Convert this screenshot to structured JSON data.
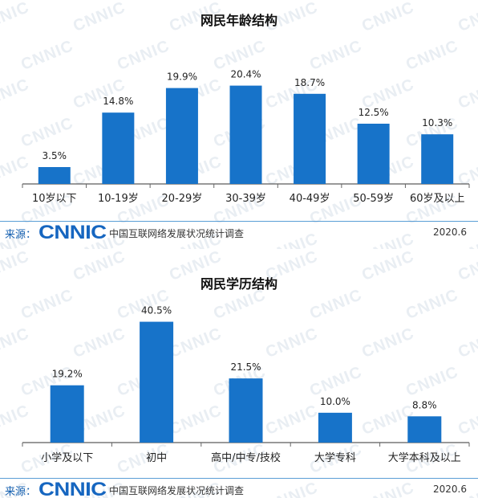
{
  "chart_data": [
    {
      "type": "bar",
      "title": "网民年龄结构",
      "categories": [
        "10岁以下",
        "10-19岁",
        "20-29岁",
        "30-39岁",
        "40-49岁",
        "50-59岁",
        "60岁及以上"
      ],
      "values": [
        3.5,
        14.8,
        19.9,
        20.4,
        18.7,
        12.5,
        10.3
      ],
      "value_labels": [
        "3.5%",
        "14.8%",
        "19.9%",
        "20.4%",
        "18.7%",
        "12.5%",
        "10.3%"
      ],
      "xlabel": "",
      "ylabel": "",
      "ylim": [
        0,
        21.5
      ],
      "grid": false,
      "bar_color": "#1773c9"
    },
    {
      "type": "bar",
      "title": "网民学历结构",
      "categories": [
        "小学及以下",
        "初中",
        "高中/中专/技校",
        "大学专科",
        "大学本科及以上"
      ],
      "values": [
        19.2,
        40.5,
        21.5,
        10.0,
        8.8
      ],
      "value_labels": [
        "19.2%",
        "40.5%",
        "21.5%",
        "10.0%",
        "8.8%"
      ],
      "xlabel": "",
      "ylabel": "",
      "ylim": [
        0,
        42
      ],
      "grid": false,
      "bar_color": "#1773c9"
    }
  ],
  "footer": {
    "source_label": "来源：",
    "logo_text": "CNNIC",
    "survey_name": "中国互联网络发展状况统计调查",
    "date": "2020.6"
  },
  "watermark": {
    "text": "CNNIC",
    "color": "#e9eef3"
  }
}
